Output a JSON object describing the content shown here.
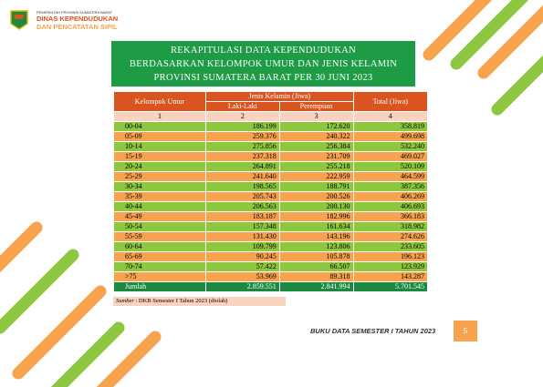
{
  "header": {
    "government": "PEMERINTAH PROVINSI SUMATERA BARAT",
    "agency": "DINAS KEPENDUDUKAN",
    "agency2": "DAN PENCATATAN SIPIL"
  },
  "title": [
    "REKAPITULASI DATA KEPENDUDUKAN",
    "BERDASARKAN KELOMPOK UMUR DAN JENIS KELAMIN",
    "PROVINSI SUMATERA BARAT PER 30 JUNI 2023"
  ],
  "table": {
    "head": {
      "age": "Kelompok Umur",
      "gender": "Jenis Kelamin (Jiwa)",
      "male": "Laki-Laki",
      "female": "Perempuan",
      "total": "Total (Jiwa)"
    },
    "col_numbers": [
      "1",
      "2",
      "3",
      "4"
    ],
    "rows": [
      [
        "00-04",
        "186.199",
        "172.620",
        "358.819"
      ],
      [
        "05-09",
        "259.376",
        "240.322",
        "499.698"
      ],
      [
        "10-14",
        "275.856",
        "256.384",
        "532.240"
      ],
      [
        "15-19",
        "237.318",
        "231.709",
        "469.027"
      ],
      [
        "20-24",
        "264.891",
        "255.218",
        "520.109"
      ],
      [
        "25-29",
        "241.640",
        "222.959",
        "464.599"
      ],
      [
        "30-34",
        "198.565",
        "188.791",
        "387.356"
      ],
      [
        "35-39",
        "205.743",
        "200.526",
        "406.269"
      ],
      [
        "40-44",
        "206.563",
        "200.130",
        "406.693"
      ],
      [
        "45-49",
        "183.187",
        "182.996",
        "366.183"
      ],
      [
        "50-54",
        "157.348",
        "161.634",
        "318.982"
      ],
      [
        "55-59",
        "131.430",
        "143.196",
        "274.626"
      ],
      [
        "60-64",
        "109.799",
        "123.806",
        "233.605"
      ],
      [
        "65-69",
        "90.245",
        "105.878",
        "196.123"
      ],
      [
        "70-74",
        "57.422",
        "66.507",
        "123.929"
      ],
      [
        ">75",
        "53.969",
        "89.318",
        "143.287"
      ]
    ],
    "total_row": [
      "Jumlah",
      "2.859.551",
      "2.841.994",
      "5.701.545"
    ]
  },
  "source": {
    "label": "Sumber",
    "text": ": DKB Semester I Tahun 2023 (diolah)"
  },
  "footer": {
    "book": "BUKU DATA SEMESTER I TAHUN 2023",
    "page": "5"
  }
}
